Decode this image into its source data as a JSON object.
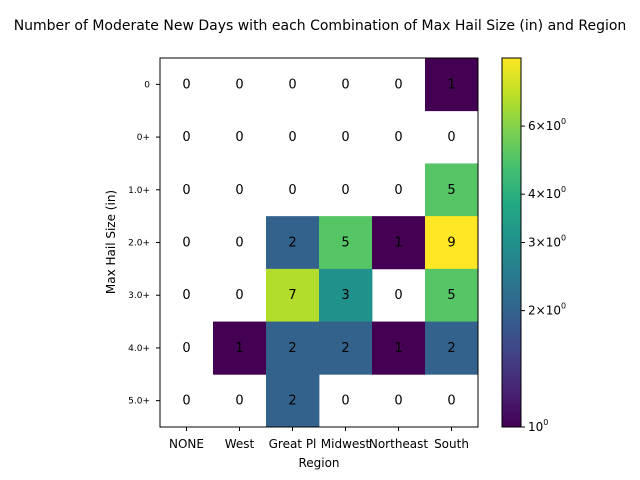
{
  "chart_data": {
    "type": "heatmap",
    "title": "Number of Moderate New Days with each Combination of Max Hail Size (in) and Region",
    "xlabel": "Region",
    "ylabel": "Max Hail Size (in)",
    "x_categories": [
      "NONE",
      "West",
      "Great Pl",
      "Midwest",
      "Northeast",
      "South"
    ],
    "y_categories": [
      "0",
      "0+",
      "1.0+",
      "2.0+",
      "3.0+",
      "4.0+",
      "5.0+"
    ],
    "values": [
      [
        0,
        0,
        0,
        0,
        0,
        1
      ],
      [
        0,
        0,
        0,
        0,
        0,
        0
      ],
      [
        0,
        0,
        0,
        0,
        0,
        5
      ],
      [
        0,
        0,
        2,
        5,
        1,
        9
      ],
      [
        0,
        0,
        7,
        3,
        0,
        5
      ],
      [
        0,
        1,
        2,
        2,
        1,
        2
      ],
      [
        0,
        0,
        2,
        0,
        0,
        0
      ]
    ],
    "color_scale": "log",
    "colormap": "viridis",
    "colorbar": {
      "range": [
        1,
        9
      ],
      "ticks": [
        {
          "value": 1,
          "base": "10",
          "exp": "0"
        },
        {
          "value": 2,
          "base": "2×10",
          "exp": "0"
        },
        {
          "value": 3,
          "base": "3×10",
          "exp": "0"
        },
        {
          "value": 4,
          "base": "4×10",
          "exp": "0"
        },
        {
          "value": 6,
          "base": "6×10",
          "exp": "0"
        }
      ]
    },
    "zero_color": "#ffffff"
  }
}
